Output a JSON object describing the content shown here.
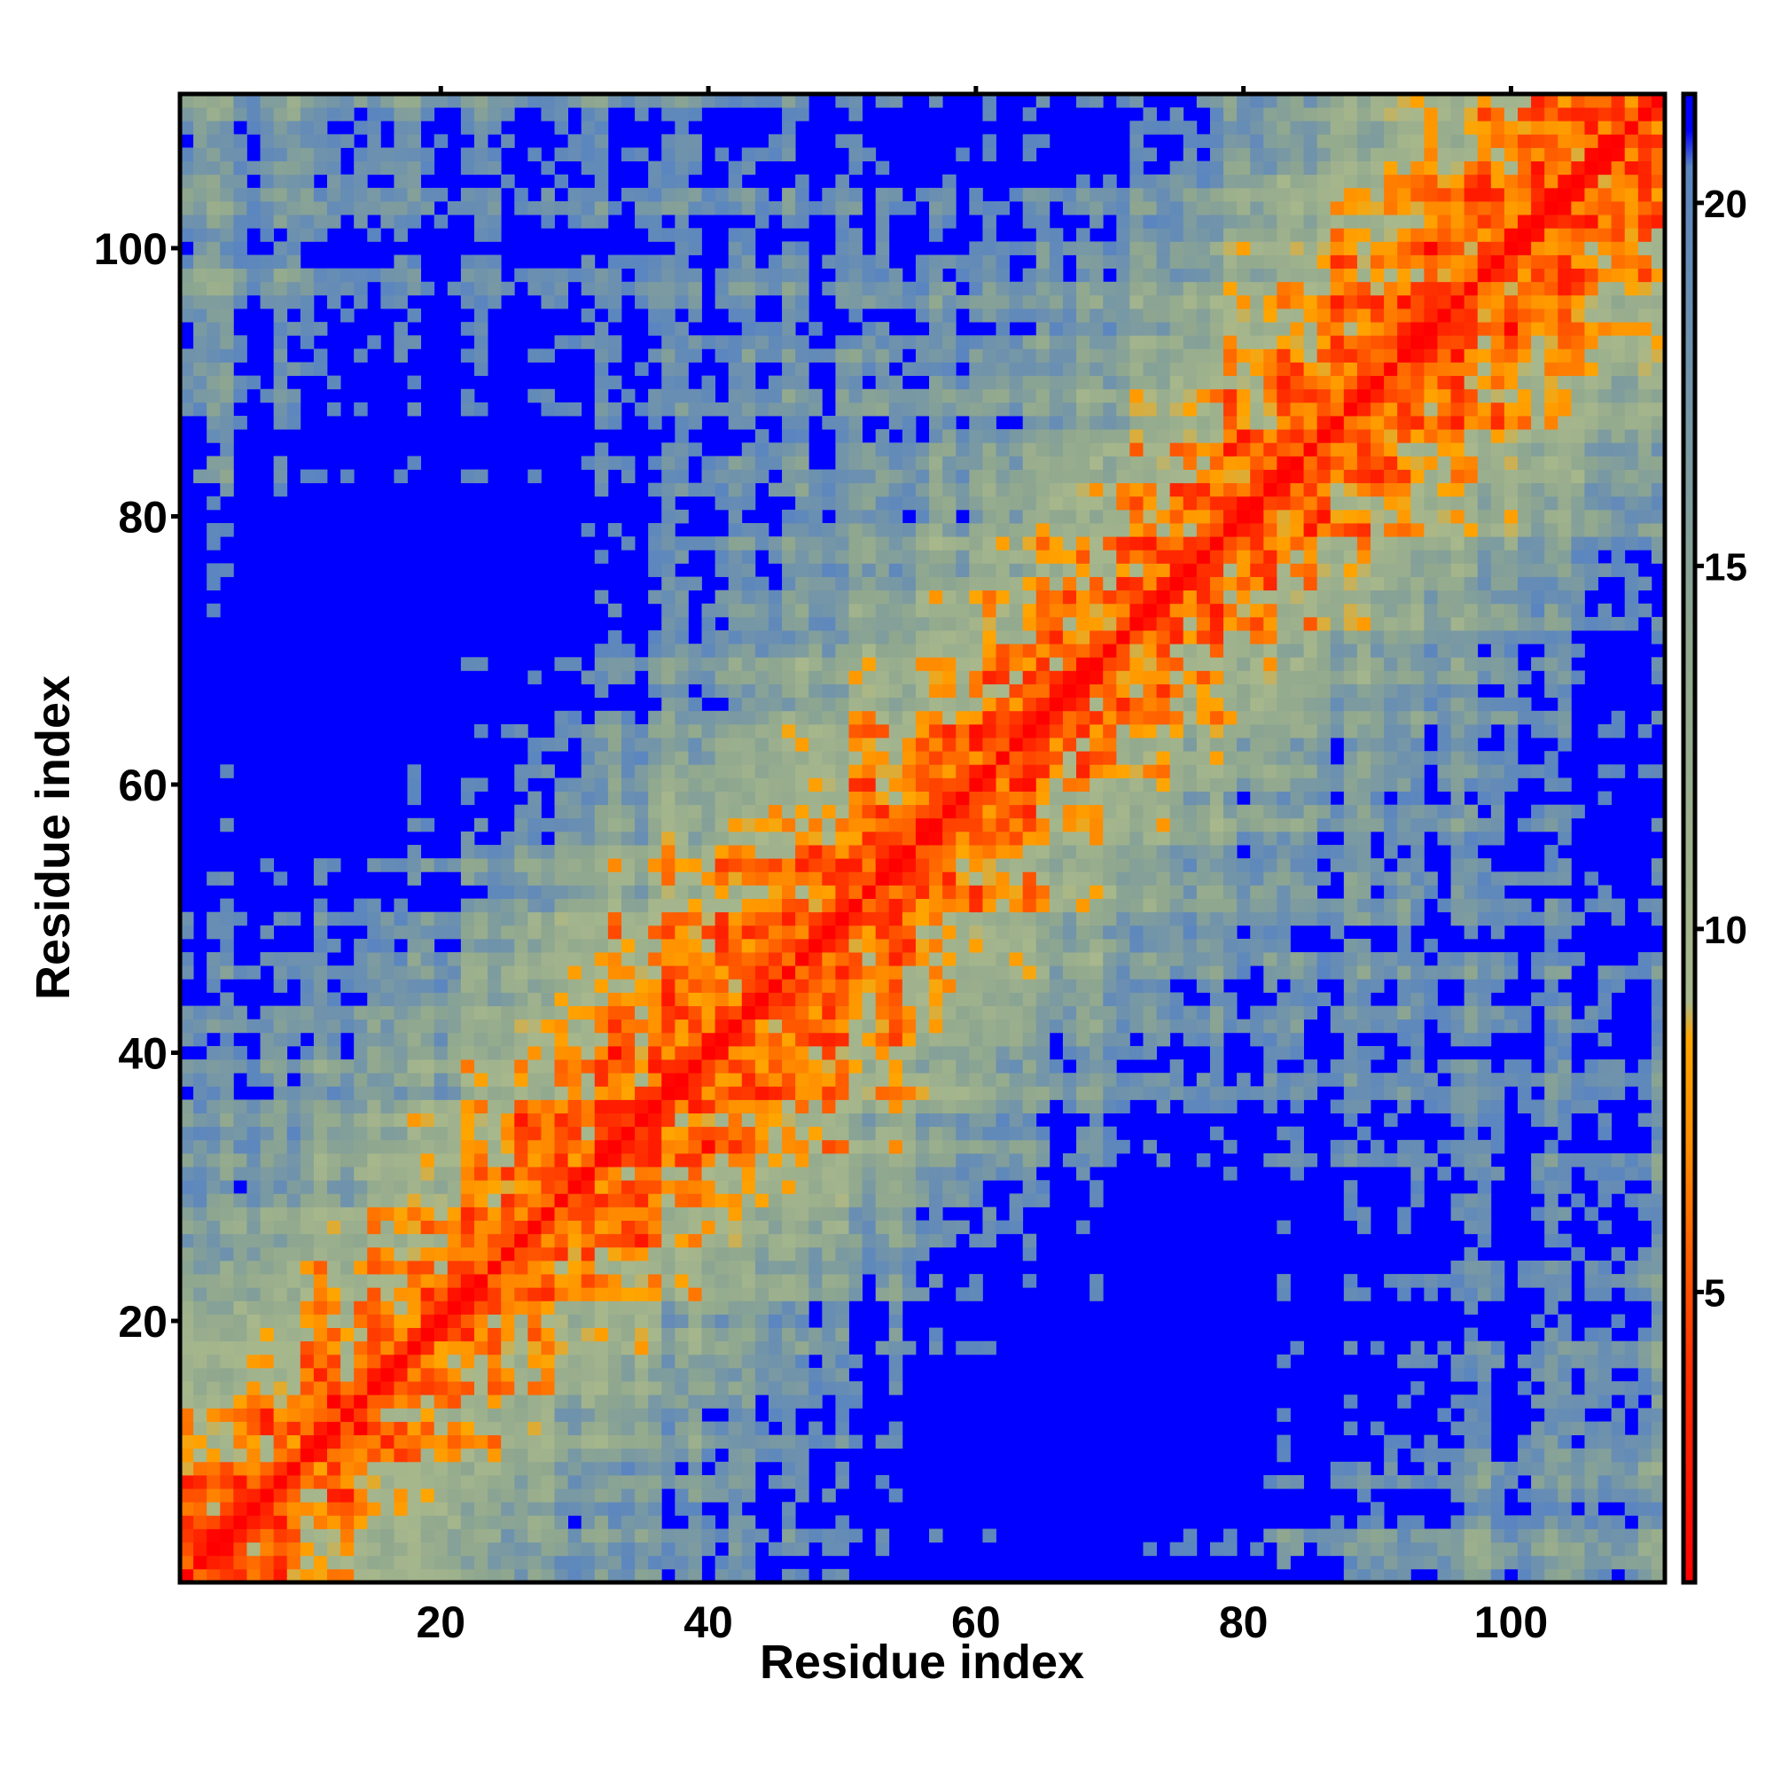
{
  "chart_data": {
    "type": "heatmap",
    "title": "",
    "xlabel": "Residue index",
    "ylabel": "Residue index",
    "n_residues": 111,
    "xlim": [
      1,
      111
    ],
    "ylim": [
      1,
      111
    ],
    "x_ticks": [
      20,
      40,
      60,
      80,
      100
    ],
    "y_ticks": [
      20,
      40,
      60,
      80,
      100
    ],
    "x_tick_labels": [
      "20",
      "40",
      "60",
      "80",
      "100"
    ],
    "y_tick_labels": [
      "20",
      "40",
      "60",
      "80",
      "100"
    ],
    "grid": false,
    "colorbar": {
      "range": [
        1,
        21.5
      ],
      "ticks": [
        5,
        10,
        15,
        20
      ],
      "tick_labels": [
        "5",
        "10",
        "15",
        "20"
      ],
      "placement": "right",
      "stops": [
        {
          "value": 1,
          "color": "#ff0000"
        },
        {
          "value": 4,
          "color": "#ff3000"
        },
        {
          "value": 7,
          "color": "#ff8c00"
        },
        {
          "value": 8.5,
          "color": "#ffa500"
        },
        {
          "value": 9.0,
          "color": "#a8b88c"
        },
        {
          "value": 14,
          "color": "#8fa78f"
        },
        {
          "value": 20.5,
          "color": "#5a85c0"
        },
        {
          "value": 21.0,
          "color": "#0000ff"
        }
      ]
    },
    "description_values": {
      "diagonal_distance": 3.8,
      "background_distance": 21.5
    }
  },
  "colors": {
    "far": "#0000ff",
    "axis": "#000000"
  }
}
